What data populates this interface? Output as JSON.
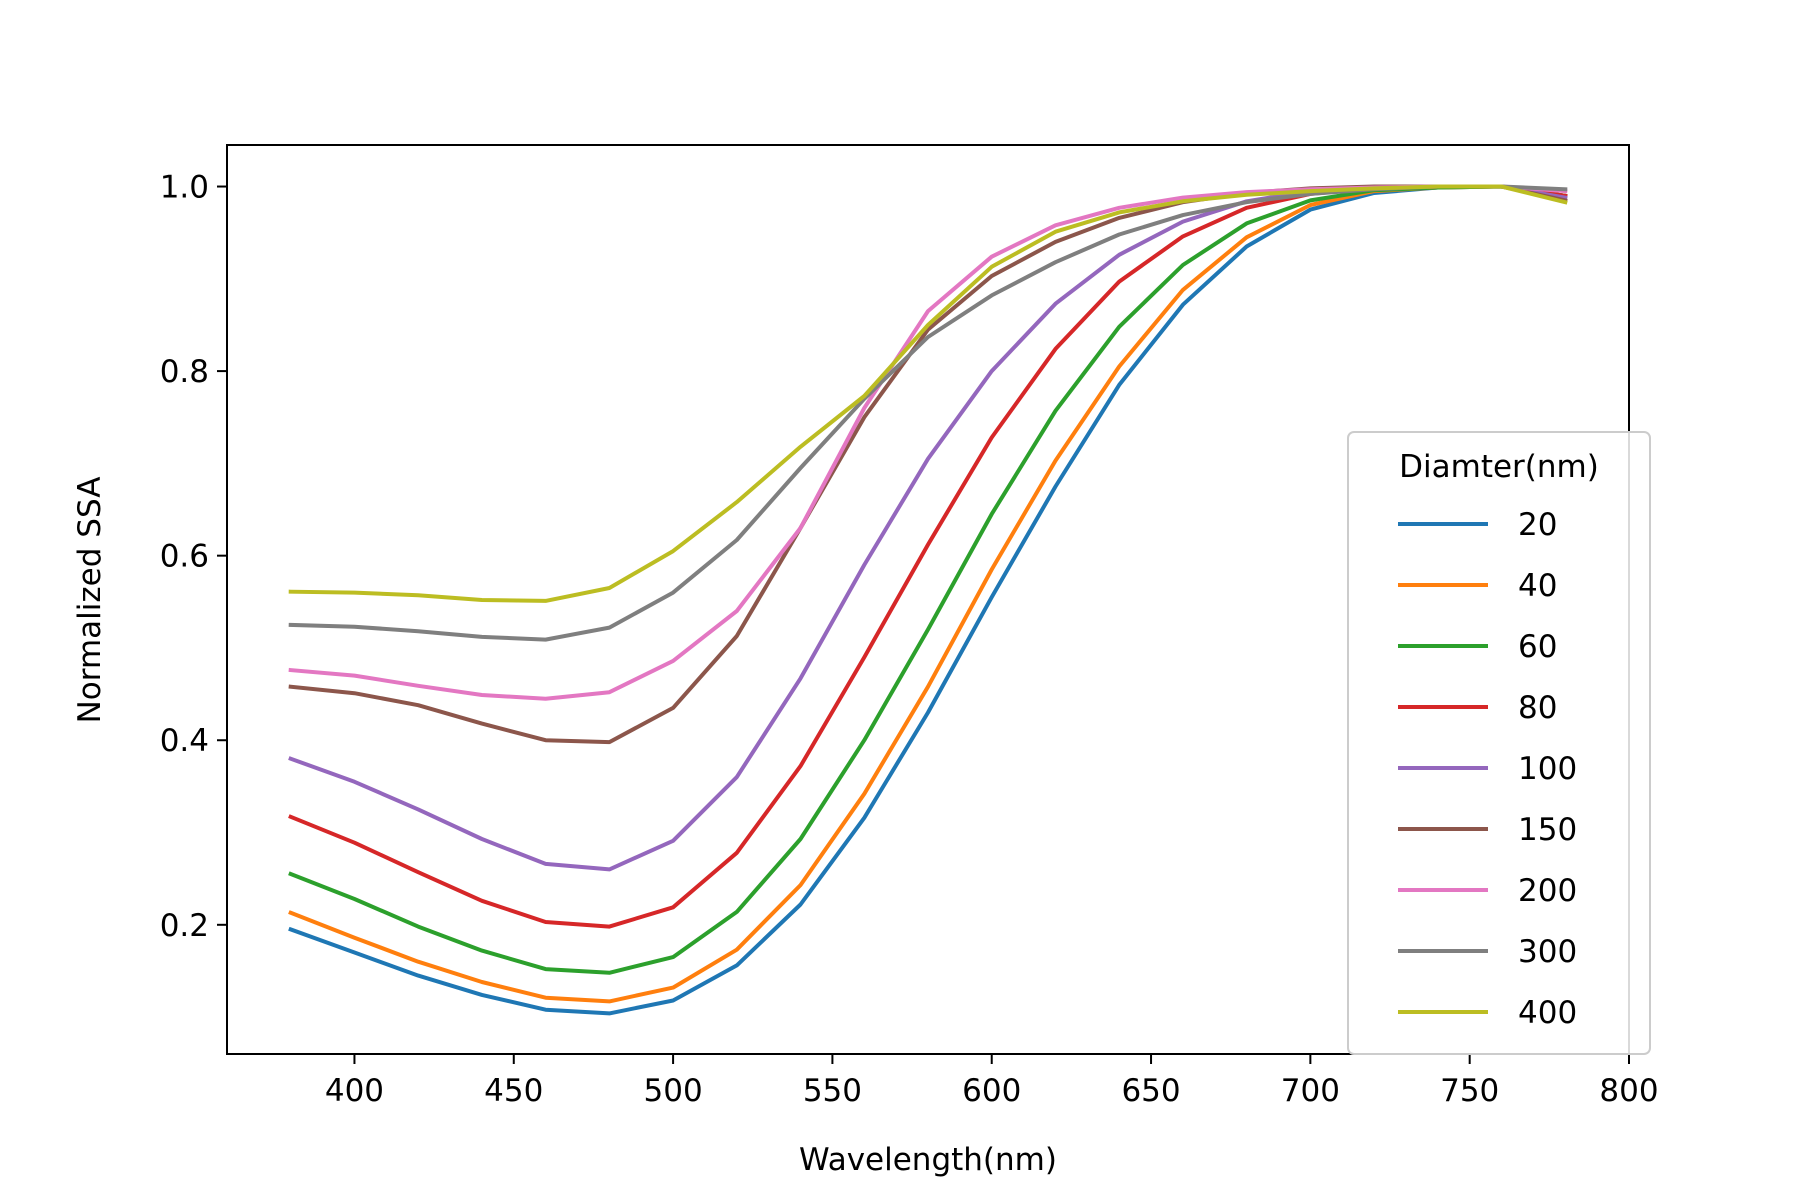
{
  "chart_data": {
    "type": "line",
    "title": "",
    "xlabel": "Wavelength(nm)",
    "ylabel": "Normalized SSA",
    "xlim": [
      360,
      800
    ],
    "ylim": [
      0.06,
      1.045
    ],
    "xticks": [
      400,
      450,
      500,
      550,
      600,
      650,
      700,
      750,
      800
    ],
    "yticks": [
      0.2,
      0.4,
      0.6,
      0.8,
      1.0
    ],
    "xtick_labels": [
      "400",
      "450",
      "500",
      "550",
      "600",
      "650",
      "700",
      "750",
      "800"
    ],
    "ytick_labels": [
      "0.2",
      "0.4",
      "0.6",
      "0.8",
      "1.0"
    ],
    "grid": false,
    "legend": {
      "title": "Diamter(nm)",
      "placement": "lower-right"
    },
    "x": [
      380,
      400,
      420,
      440,
      460,
      480,
      500,
      520,
      540,
      560,
      580,
      600,
      620,
      640,
      660,
      680,
      700,
      720,
      740,
      760,
      780
    ],
    "series": [
      {
        "name": "20",
        "color": "#1f77b4",
        "values": [
          0.195,
          0.17,
          0.145,
          0.124,
          0.108,
          0.104,
          0.118,
          0.156,
          0.222,
          0.316,
          0.43,
          0.555,
          0.675,
          0.785,
          0.872,
          0.935,
          0.975,
          0.993,
          0.999,
          1.0,
          0.99
        ]
      },
      {
        "name": "40",
        "color": "#ff7f0e",
        "values": [
          0.213,
          0.186,
          0.16,
          0.138,
          0.121,
          0.117,
          0.132,
          0.173,
          0.243,
          0.342,
          0.458,
          0.585,
          0.703,
          0.805,
          0.888,
          0.945,
          0.98,
          0.995,
          0.999,
          1.0,
          0.99
        ]
      },
      {
        "name": "60",
        "color": "#2ca02c",
        "values": [
          0.255,
          0.228,
          0.198,
          0.172,
          0.152,
          0.148,
          0.165,
          0.214,
          0.293,
          0.4,
          0.52,
          0.645,
          0.757,
          0.848,
          0.915,
          0.96,
          0.985,
          0.996,
          0.999,
          1.0,
          0.99
        ]
      },
      {
        "name": "80",
        "color": "#d62728",
        "values": [
          0.317,
          0.289,
          0.257,
          0.226,
          0.203,
          0.198,
          0.219,
          0.278,
          0.372,
          0.49,
          0.612,
          0.728,
          0.824,
          0.897,
          0.946,
          0.977,
          0.992,
          0.998,
          1.0,
          1.0,
          0.99
        ]
      },
      {
        "name": "100",
        "color": "#9467bd",
        "values": [
          0.38,
          0.355,
          0.325,
          0.293,
          0.266,
          0.26,
          0.291,
          0.36,
          0.467,
          0.59,
          0.705,
          0.8,
          0.873,
          0.926,
          0.962,
          0.984,
          0.995,
          0.999,
          1.0,
          1.0,
          0.988
        ]
      },
      {
        "name": "150",
        "color": "#8c564b",
        "values": [
          0.458,
          0.451,
          0.438,
          0.418,
          0.4,
          0.398,
          0.435,
          0.513,
          0.63,
          0.75,
          0.845,
          0.903,
          0.94,
          0.966,
          0.983,
          0.993,
          0.998,
          1.0,
          1.0,
          1.0,
          0.985
        ]
      },
      {
        "name": "200",
        "color": "#e377c2",
        "values": [
          0.476,
          0.47,
          0.459,
          0.449,
          0.445,
          0.452,
          0.486,
          0.54,
          0.63,
          0.76,
          0.865,
          0.924,
          0.958,
          0.977,
          0.988,
          0.994,
          0.997,
          0.999,
          1.0,
          1.0,
          0.995
        ]
      },
      {
        "name": "300",
        "color": "#7f7f7f",
        "values": [
          0.525,
          0.523,
          0.518,
          0.512,
          0.509,
          0.522,
          0.56,
          0.617,
          0.695,
          0.77,
          0.837,
          0.882,
          0.918,
          0.948,
          0.969,
          0.983,
          0.992,
          0.997,
          1.0,
          1.0,
          0.997
        ]
      },
      {
        "name": "400",
        "color": "#bcbd22",
        "values": [
          0.561,
          0.56,
          0.557,
          0.552,
          0.551,
          0.565,
          0.605,
          0.658,
          0.718,
          0.773,
          0.85,
          0.913,
          0.951,
          0.972,
          0.984,
          0.991,
          0.995,
          0.998,
          1.0,
          1.0,
          0.983
        ]
      }
    ]
  }
}
